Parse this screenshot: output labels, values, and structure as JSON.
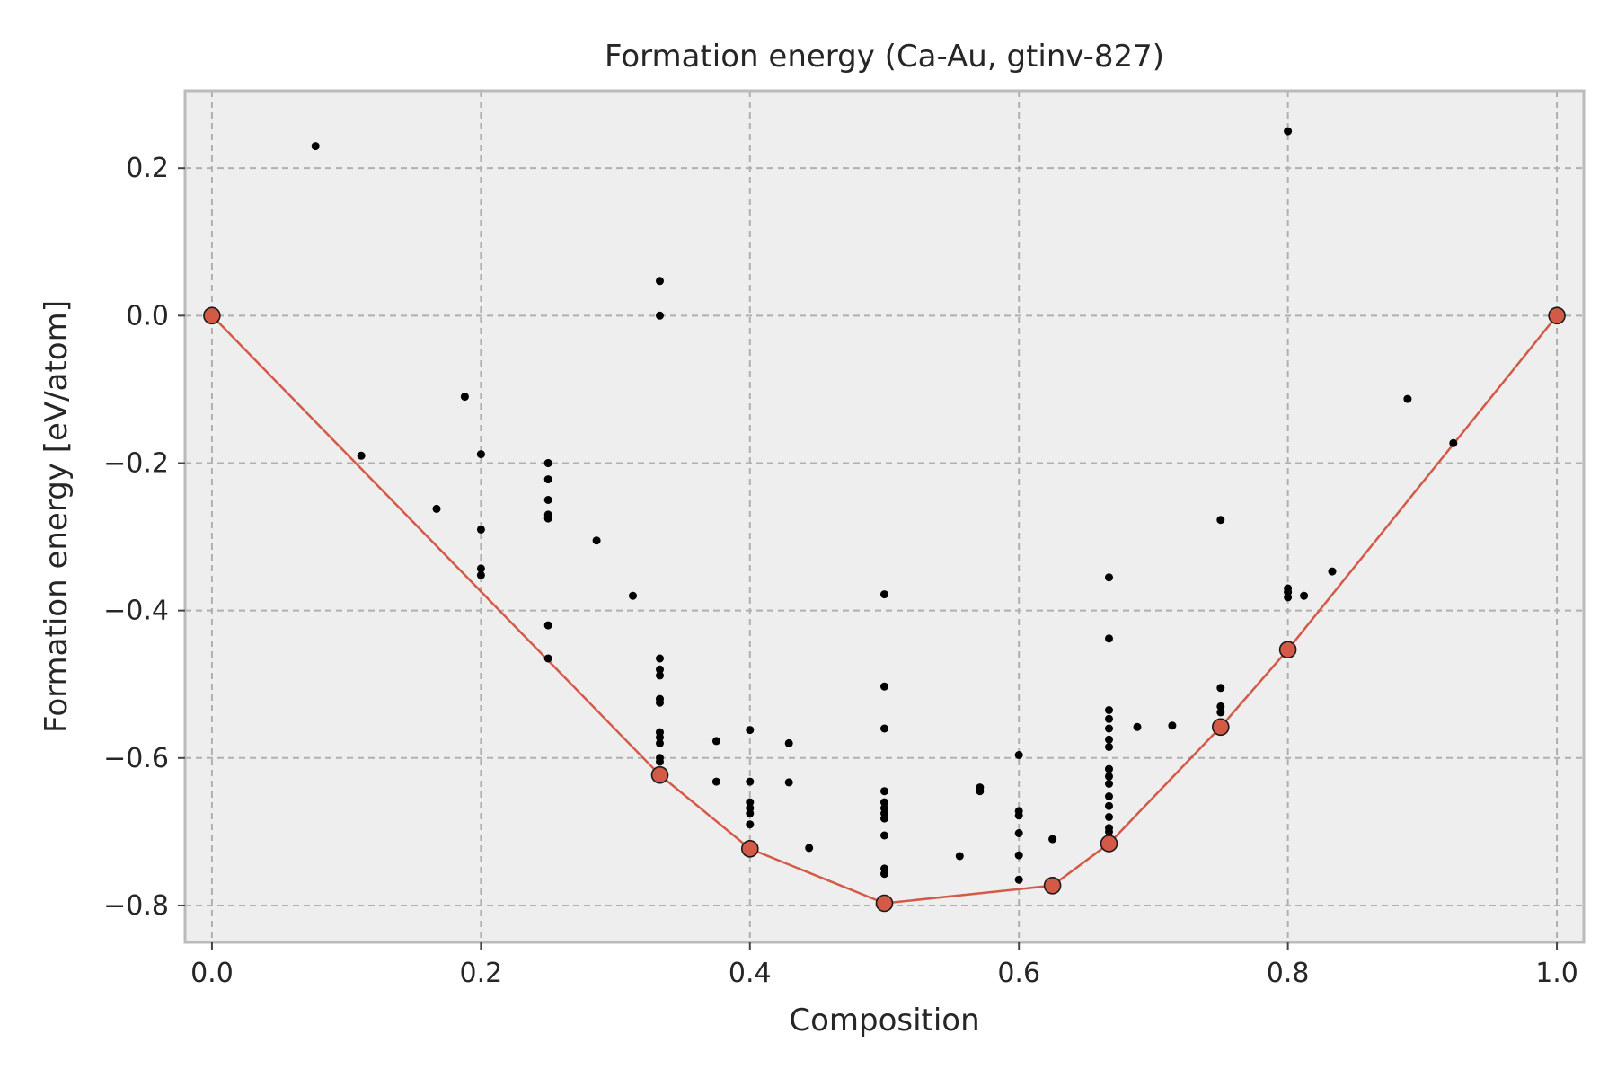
{
  "chart_data": {
    "type": "scatter",
    "title": "Formation energy (Ca-Au, gtinv-827)",
    "xlabel": "Composition",
    "ylabel": "Formation energy [eV/atom]",
    "xlim": [
      -0.02,
      1.02
    ],
    "ylim": [
      -0.85,
      0.305
    ],
    "xticks": [
      0.0,
      0.2,
      0.4,
      0.6,
      0.8,
      1.0
    ],
    "xtick_labels": [
      "0.0",
      "0.2",
      "0.4",
      "0.6",
      "0.8",
      "1.0"
    ],
    "yticks": [
      0.2,
      0.0,
      -0.2,
      -0.4,
      -0.6,
      -0.8
    ],
    "ytick_labels": [
      "0.2",
      "0.0",
      "−0.2",
      "−0.4",
      "−0.6",
      "−0.8"
    ],
    "grid": true,
    "colors": {
      "background": "#eeeeee",
      "hull": "#d45a48",
      "points": "#000000",
      "frame": "#bbbbbb"
    },
    "series": [
      {
        "kind": "scatter",
        "x": [
          0.077,
          0.111,
          0.167,
          0.188,
          0.2,
          0.2,
          0.2,
          0.2,
          0.25,
          0.25,
          0.25,
          0.25,
          0.25,
          0.25,
          0.25,
          0.25,
          0.286,
          0.313,
          0.333,
          0.333,
          0.333,
          0.333,
          0.333,
          0.333,
          0.333,
          0.333,
          0.333,
          0.333,
          0.333,
          0.333,
          0.333,
          0.375,
          0.375,
          0.4,
          0.4,
          0.4,
          0.4,
          0.4,
          0.4,
          0.429,
          0.429,
          0.444,
          0.5,
          0.5,
          0.5,
          0.5,
          0.5,
          0.5,
          0.5,
          0.5,
          0.5,
          0.5,
          0.5,
          0.5,
          0.556,
          0.571,
          0.571,
          0.6,
          0.6,
          0.6,
          0.6,
          0.6,
          0.6,
          0.625,
          0.667,
          0.667,
          0.667,
          0.667,
          0.667,
          0.667,
          0.667,
          0.667,
          0.667,
          0.667,
          0.667,
          0.667,
          0.667,
          0.667,
          0.667,
          0.667,
          0.688,
          0.714,
          0.75,
          0.75,
          0.75,
          0.75,
          0.75,
          0.8,
          0.8,
          0.8,
          0.8,
          0.812,
          0.833,
          0.889,
          0.923
        ],
        "y": [
          0.23,
          -0.19,
          -0.262,
          -0.11,
          -0.188,
          -0.29,
          -0.343,
          -0.352,
          -0.2,
          -0.222,
          -0.25,
          -0.27,
          -0.275,
          -0.42,
          -0.465,
          -0.2,
          -0.305,
          -0.38,
          0.047,
          0.0,
          -0.465,
          -0.48,
          -0.488,
          -0.52,
          -0.525,
          -0.565,
          -0.572,
          -0.58,
          -0.6,
          -0.605,
          -0.622,
          -0.577,
          -0.632,
          -0.562,
          -0.632,
          -0.66,
          -0.668,
          -0.675,
          -0.69,
          -0.58,
          -0.633,
          -0.722,
          -0.378,
          -0.503,
          -0.56,
          -0.645,
          -0.66,
          -0.668,
          -0.675,
          -0.682,
          -0.705,
          -0.75,
          -0.757,
          -0.795,
          -0.733,
          -0.64,
          -0.645,
          -0.596,
          -0.672,
          -0.678,
          -0.702,
          -0.732,
          -0.765,
          -0.71,
          -0.355,
          -0.438,
          -0.535,
          -0.547,
          -0.56,
          -0.575,
          -0.585,
          -0.615,
          -0.625,
          -0.635,
          -0.652,
          -0.665,
          -0.68,
          -0.695,
          -0.7,
          -0.715,
          -0.558,
          -0.556,
          -0.277,
          -0.505,
          -0.53,
          -0.538,
          -0.558,
          0.25,
          -0.37,
          -0.375,
          -0.382,
          -0.38,
          -0.347,
          -0.113,
          -0.173
        ]
      },
      {
        "kind": "hull",
        "x": [
          0.0,
          0.333,
          0.4,
          0.5,
          0.625,
          0.667,
          0.75,
          0.8,
          1.0
        ],
        "y": [
          0.0,
          -0.623,
          -0.723,
          -0.797,
          -0.773,
          -0.716,
          -0.558,
          -0.453,
          0.0
        ]
      }
    ]
  }
}
